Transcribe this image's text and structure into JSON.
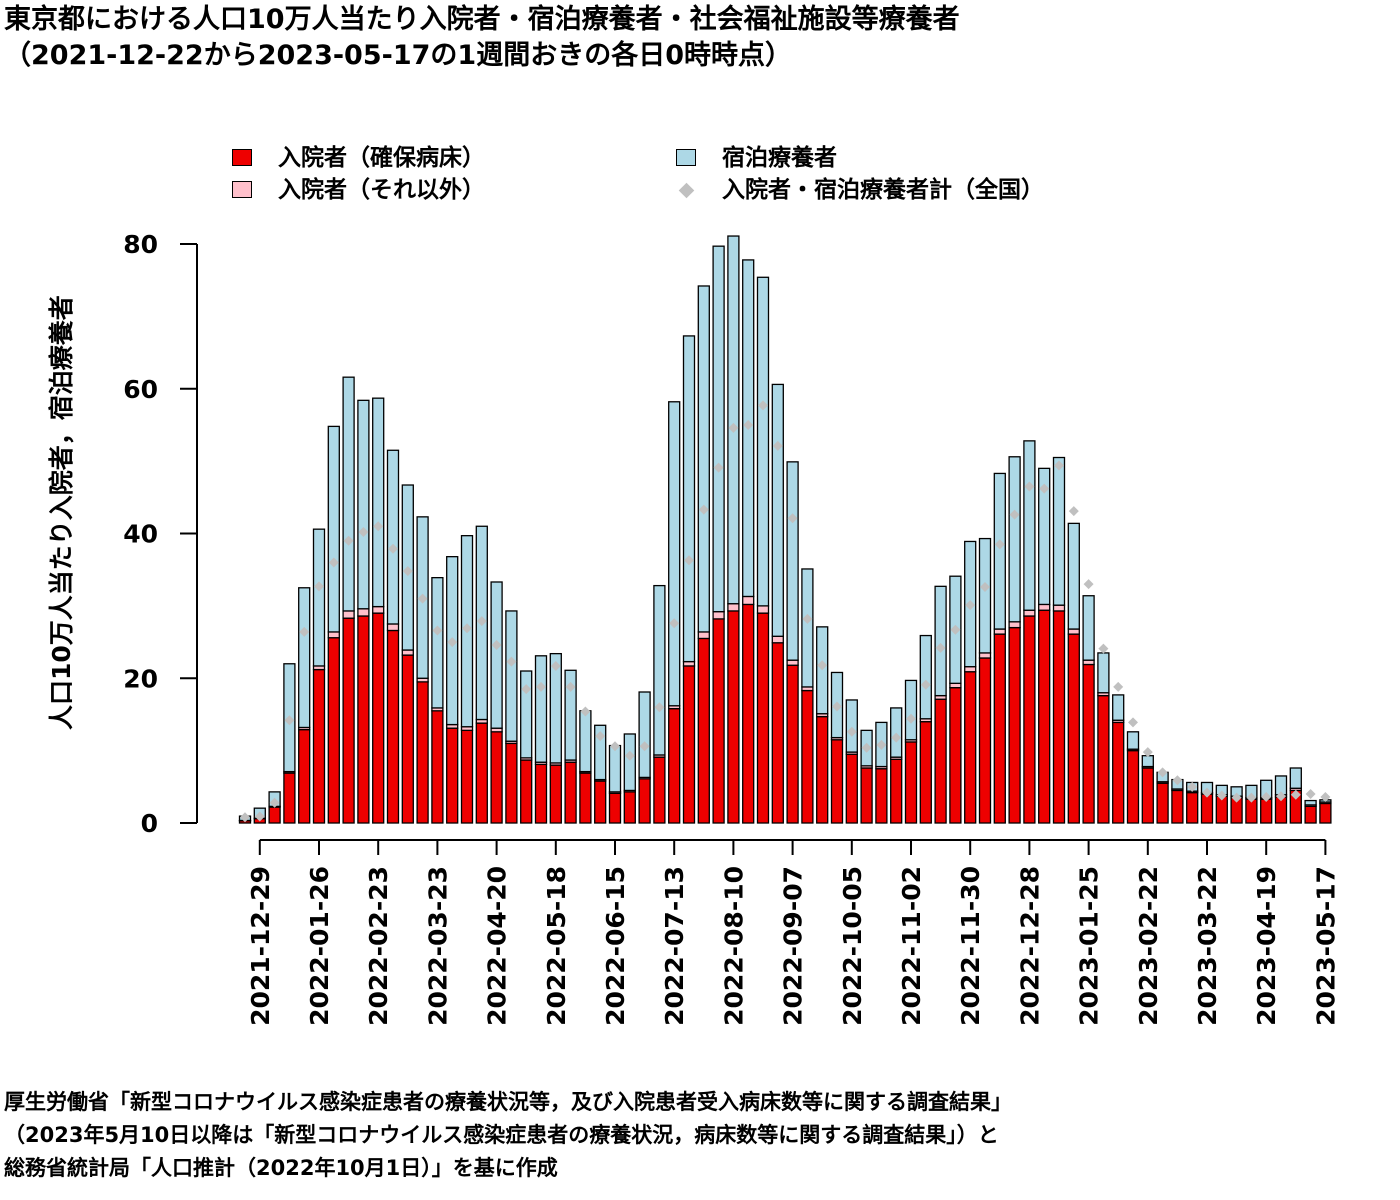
{
  "title_line1": "東京都における人口10万人当たり入院者・宿泊療養者・社会福祉施設等療養者",
  "title_line2": "（2021-12-22から2023-05-17の1週間おきの各日0時時点）",
  "caption_line1": "厚生労働省「新型コロナウイルス感染症患者の療養状況等，及び入院患者受入病床数等に関する調査結果」",
  "caption_line2": "（2023年5月10日以降は「新型コロナウイルス感染症患者の療養状況，病床数等に関する調査結果」）と",
  "caption_line3": "総務省統計局「人口推計（2022年10月1日）」を基に作成",
  "colors": {
    "secured": "#ee0000",
    "other": "#ffc0cb",
    "lodging": "#add8e6",
    "national": "#c0c0c0"
  },
  "chart_data": {
    "type": "bar",
    "stacked": true,
    "ylabel": "人口10万人当たり入院者，宿泊療養者",
    "ylim": [
      0,
      80
    ],
    "yticks": [
      0,
      20,
      40,
      60,
      80
    ],
    "legend_placement": "top",
    "x_tick_labels": [
      "2021-12-29",
      "2022-01-26",
      "2022-02-23",
      "2022-03-23",
      "2022-04-20",
      "2022-05-18",
      "2022-06-15",
      "2022-07-13",
      "2022-08-10",
      "2022-09-07",
      "2022-10-05",
      "2022-11-02",
      "2022-11-30",
      "2022-12-28",
      "2023-01-25",
      "2023-02-22",
      "2023-03-22",
      "2023-04-19",
      "2023-05-17"
    ],
    "categories": [
      "2021-12-22",
      "2021-12-29",
      "2022-01-05",
      "2022-01-12",
      "2022-01-19",
      "2022-01-26",
      "2022-02-02",
      "2022-02-09",
      "2022-02-16",
      "2022-02-23",
      "2022-03-02",
      "2022-03-09",
      "2022-03-16",
      "2022-03-23",
      "2022-03-30",
      "2022-04-06",
      "2022-04-13",
      "2022-04-20",
      "2022-04-27",
      "2022-05-04",
      "2022-05-11",
      "2022-05-18",
      "2022-05-25",
      "2022-06-01",
      "2022-06-08",
      "2022-06-15",
      "2022-06-22",
      "2022-06-29",
      "2022-07-06",
      "2022-07-13",
      "2022-07-20",
      "2022-07-27",
      "2022-08-03",
      "2022-08-10",
      "2022-08-17",
      "2022-08-24",
      "2022-08-31",
      "2022-09-07",
      "2022-09-14",
      "2022-09-21",
      "2022-09-28",
      "2022-10-05",
      "2022-10-12",
      "2022-10-19",
      "2022-10-26",
      "2022-11-02",
      "2022-11-09",
      "2022-11-16",
      "2022-11-23",
      "2022-11-30",
      "2022-12-07",
      "2022-12-14",
      "2022-12-21",
      "2022-12-28",
      "2023-01-04",
      "2023-01-11",
      "2023-01-18",
      "2023-01-25",
      "2023-02-01",
      "2023-02-08",
      "2023-02-15",
      "2023-02-22",
      "2023-03-01",
      "2023-03-08",
      "2023-03-15",
      "2023-03-22",
      "2023-03-29",
      "2023-04-05",
      "2023-04-12",
      "2023-04-19",
      "2023-04-26",
      "2023-05-03",
      "2023-05-10",
      "2023-05-17"
    ],
    "series": [
      {
        "name": "入院者（確保病床）",
        "values": [
          0.3,
          0.6,
          2.2,
          6.9,
          12.9,
          21.2,
          25.6,
          28.3,
          28.6,
          29.0,
          26.6,
          23.2,
          19.5,
          15.5,
          13.1,
          12.8,
          13.8,
          12.6,
          11.0,
          8.7,
          8.1,
          8.0,
          8.4,
          6.9,
          5.8,
          4.1,
          4.3,
          6.1,
          9.1,
          15.8,
          21.7,
          25.5,
          28.2,
          29.3,
          30.2,
          29.0,
          24.9,
          21.8,
          18.3,
          14.7,
          11.5,
          9.5,
          7.6,
          7.5,
          8.8,
          11.2,
          14.0,
          17.1,
          18.7,
          20.9,
          22.8,
          26.1,
          27.0,
          28.6,
          29.4,
          29.3,
          26.1,
          21.9,
          17.6,
          13.9,
          10.0,
          7.6,
          5.5,
          4.5,
          4.2,
          4.0,
          3.7,
          3.5,
          3.3,
          3.3,
          3.6,
          4.5,
          2.3,
          2.7
        ]
      },
      {
        "name": "入院者（それ以外）",
        "values": [
          0.05,
          0.05,
          0.1,
          0.2,
          0.3,
          0.5,
          0.8,
          1.0,
          1.0,
          0.9,
          0.9,
          0.7,
          0.5,
          0.4,
          0.5,
          0.5,
          0.5,
          0.5,
          0.3,
          0.3,
          0.3,
          0.3,
          0.3,
          0.2,
          0.2,
          0.2,
          0.2,
          0.2,
          0.3,
          0.4,
          0.6,
          0.9,
          1.0,
          1.0,
          1.1,
          1.0,
          0.9,
          0.7,
          0.5,
          0.4,
          0.3,
          0.3,
          0.3,
          0.3,
          0.3,
          0.3,
          0.4,
          0.5,
          0.6,
          0.7,
          0.7,
          0.7,
          0.8,
          0.8,
          0.8,
          0.8,
          0.7,
          0.6,
          0.4,
          0.3,
          0.2,
          0.2,
          0.2,
          0.2,
          0.2,
          0.2,
          0.2,
          0.2,
          0.2,
          0.2,
          0.3,
          0.3,
          0.2,
          0.2
        ]
      },
      {
        "name": "宿泊療養者",
        "values": [
          0.6,
          1.4,
          2.0,
          14.9,
          19.3,
          18.9,
          28.4,
          32.3,
          28.8,
          28.8,
          24.0,
          22.8,
          22.3,
          18.0,
          23.2,
          26.4,
          26.7,
          20.2,
          18.0,
          12.0,
          14.7,
          15.1,
          12.4,
          8.4,
          7.5,
          6.4,
          7.8,
          11.8,
          23.4,
          42.0,
          45.0,
          47.8,
          50.5,
          50.8,
          46.5,
          45.4,
          34.8,
          27.4,
          16.3,
          12.0,
          9.0,
          7.2,
          4.9,
          6.1,
          6.8,
          8.2,
          11.5,
          15.1,
          14.8,
          17.3,
          15.8,
          21.5,
          22.8,
          23.4,
          18.8,
          20.4,
          14.6,
          8.9,
          5.5,
          3.5,
          2.4,
          1.5,
          1.3,
          1.3,
          1.2,
          1.4,
          1.3,
          1.3,
          1.7,
          2.4,
          2.6,
          2.8,
          0.6,
          0.3
        ]
      },
      {
        "name": "入院者・宿泊療養者計（全国）",
        "type": "scatter",
        "values": [
          0.8,
          0.9,
          2.8,
          14.2,
          26.4,
          32.7,
          36.0,
          39.0,
          40.2,
          41.0,
          37.9,
          34.8,
          31.0,
          26.6,
          25.0,
          26.9,
          27.9,
          24.6,
          22.3,
          18.5,
          18.8,
          21.7,
          18.8,
          15.4,
          12.0,
          10.6,
          9.3,
          10.6,
          16.0,
          27.6,
          36.3,
          43.3,
          49.1,
          54.6,
          55.0,
          57.7,
          52.1,
          42.1,
          28.2,
          21.8,
          16.1,
          12.6,
          10.4,
          10.8,
          11.8,
          14.4,
          19.1,
          24.2,
          26.7,
          30.1,
          32.6,
          38.5,
          42.6,
          46.5,
          46.2,
          49.4,
          43.1,
          33.0,
          24.1,
          18.8,
          13.9,
          9.8,
          7.0,
          5.9,
          5.0,
          4.2,
          3.8,
          3.5,
          3.5,
          3.6,
          3.7,
          3.9,
          4.0,
          3.6
        ]
      }
    ]
  }
}
